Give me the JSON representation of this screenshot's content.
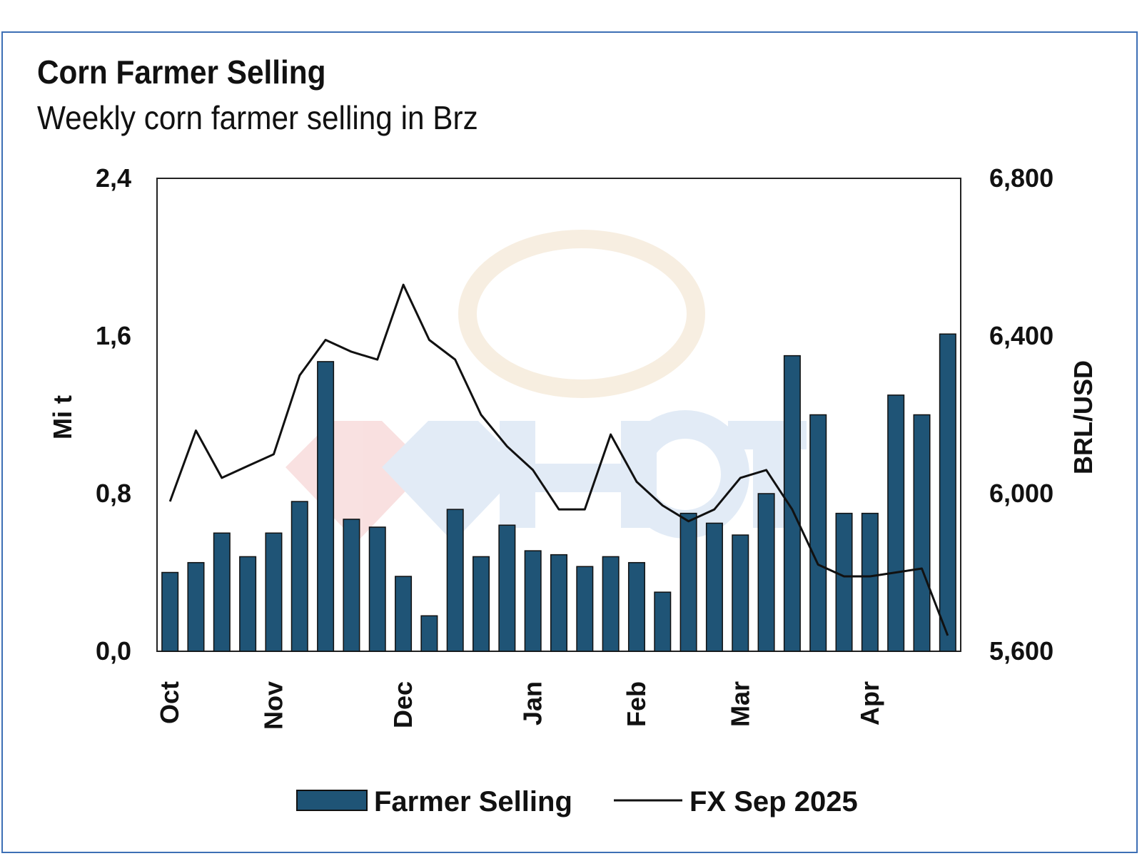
{
  "chart_data": {
    "type": "bar",
    "title": "Corn Farmer Selling",
    "subtitle": "Weekly corn farmer selling in Brz",
    "ylabel": "Mi t",
    "y2label": "BRL/USD",
    "ylim": [
      0,
      2.4
    ],
    "y2lim": [
      5600,
      6800
    ],
    "yticks": [
      "0,0",
      "0,8",
      "1,6",
      "2,4"
    ],
    "y2ticks": [
      "5,600",
      "6,000",
      "6,400",
      "6,800"
    ],
    "month_labels": [
      {
        "label": "Oct",
        "week": 0
      },
      {
        "label": "Nov",
        "week": 4
      },
      {
        "label": "Dec",
        "week": 9
      },
      {
        "label": "Jan",
        "week": 14
      },
      {
        "label": "Feb",
        "week": 18
      },
      {
        "label": "Mar",
        "week": 22
      },
      {
        "label": "Apr",
        "week": 27
      }
    ],
    "grid": false,
    "legend_position": "bottom",
    "series": [
      {
        "name": "Farmer Selling",
        "type": "bar",
        "axis": "left",
        "color": "#1f5476",
        "values": [
          0.4,
          0.45,
          0.6,
          0.48,
          0.6,
          0.76,
          1.47,
          0.67,
          0.63,
          0.38,
          0.18,
          0.72,
          0.48,
          0.64,
          0.51,
          0.49,
          0.43,
          0.48,
          0.45,
          0.3,
          0.7,
          0.65,
          0.59,
          0.8,
          1.5,
          1.2,
          0.7,
          0.7,
          1.3,
          1.2,
          1.61
        ]
      },
      {
        "name": "FX Sep 2025",
        "type": "line",
        "axis": "right",
        "color": "#111111",
        "values": [
          5980,
          6160,
          6040,
          6070,
          6100,
          6300,
          6390,
          6360,
          6340,
          6530,
          6390,
          6340,
          6200,
          6120,
          6060,
          5960,
          5960,
          6150,
          6030,
          5970,
          5930,
          5960,
          6040,
          6060,
          5960,
          5820,
          5790,
          5790,
          5800,
          5810,
          5640
        ]
      }
    ]
  }
}
